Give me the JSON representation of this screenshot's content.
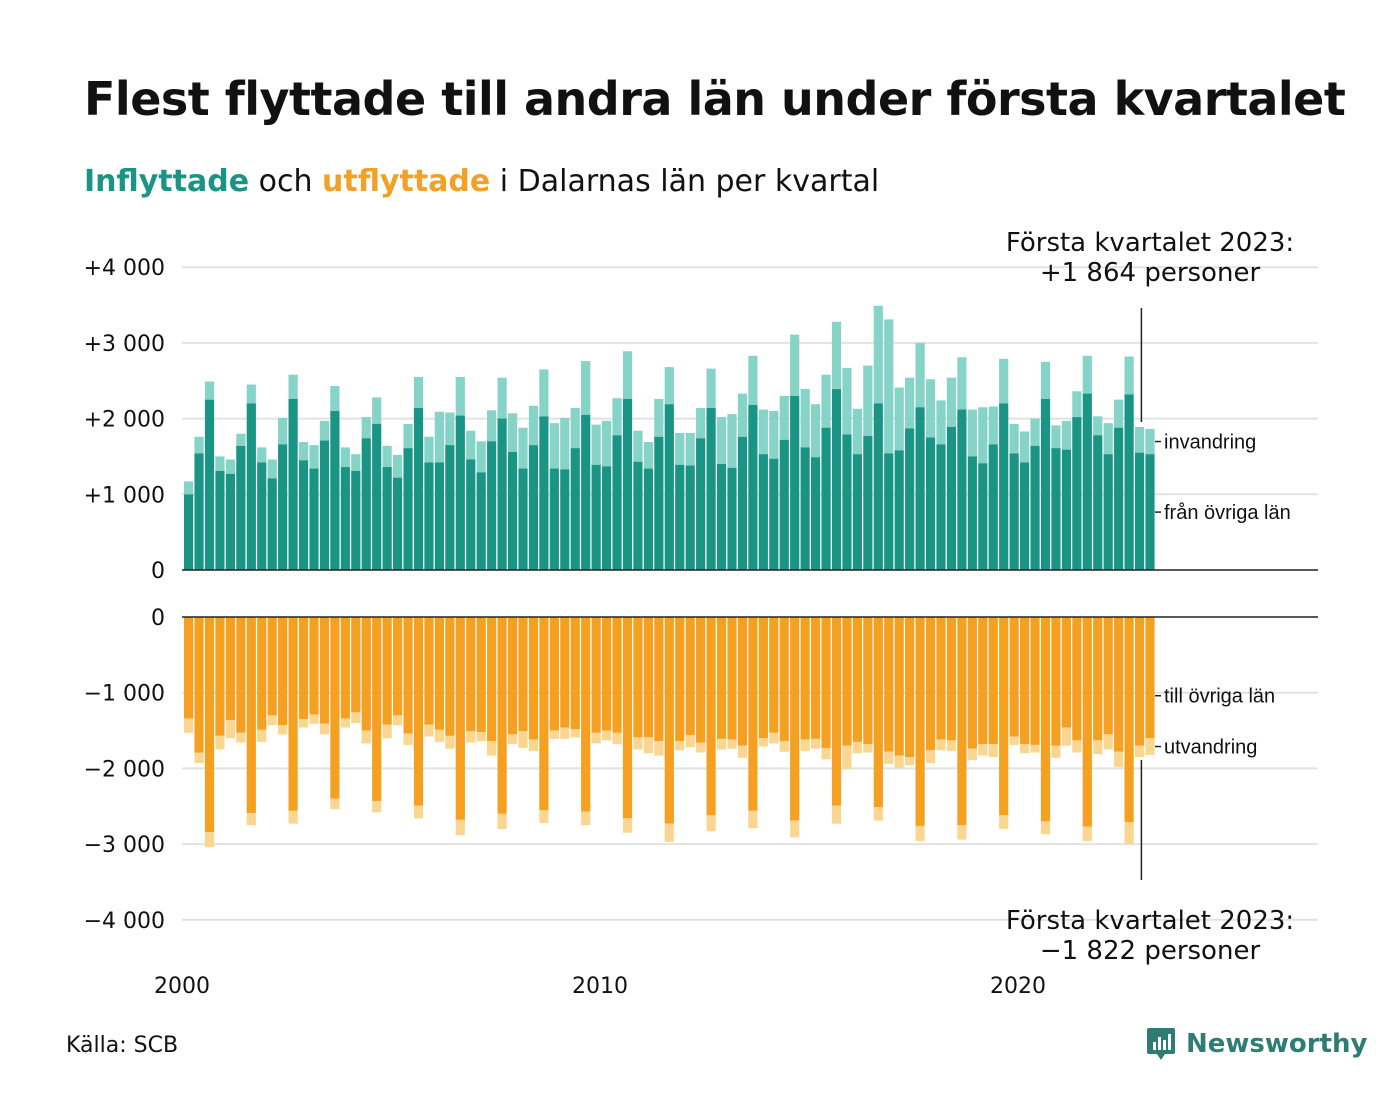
{
  "title": "Flest flyttade till andra län under första kvartalet",
  "subtitle": {
    "part1": "Inflyttade",
    "part2": " och ",
    "part3": "utflyttade",
    "part4": " i Dalarnas län per kvartal"
  },
  "source": "Källa: SCB",
  "brand": "Newsworthy",
  "colors": {
    "in_main": "#1a9484",
    "in_extra": "#86d3c8",
    "out_main": "#f5a021",
    "out_extra": "#fbd691",
    "grid": "#e2e2e2",
    "axis": "#222222"
  },
  "chart_data": {
    "type": "bar",
    "x_ticks": [
      "2000",
      "2010",
      "2020"
    ],
    "start_year": 2000,
    "top_panel": {
      "yticks": [
        "+4 000",
        "+3 000",
        "+2 000",
        "+1 000",
        "0"
      ],
      "ylim": [
        0,
        4000
      ],
      "series_labels": [
        "invandring",
        "från övriga län"
      ],
      "total": [
        1170,
        1760,
        2490,
        1500,
        1460,
        1800,
        2450,
        1620,
        1460,
        2010,
        2580,
        1690,
        1650,
        1970,
        2430,
        1620,
        1530,
        2020,
        2280,
        1640,
        1520,
        1930,
        2550,
        1760,
        2090,
        2080,
        2550,
        1840,
        1700,
        2110,
        2540,
        2070,
        1880,
        2170,
        2650,
        1940,
        2010,
        2140,
        2760,
        1920,
        1970,
        2270,
        2890,
        1840,
        1690,
        2260,
        2680,
        1810,
        1810,
        2140,
        2660,
        2020,
        2060,
        2330,
        2830,
        2120,
        2100,
        2300,
        3110,
        2390,
        2190,
        2580,
        3280,
        2670,
        2130,
        2700,
        3490,
        3310,
        2410,
        2540,
        3000,
        2520,
        2240,
        2540,
        2810,
        2120,
        2150,
        2160,
        2790,
        1930,
        1830,
        2000,
        2750,
        1910,
        1970,
        2360,
        2830,
        2030,
        1940,
        2250,
        2820,
        1890,
        1864
      ],
      "domestic": [
        1000,
        1540,
        2250,
        1310,
        1270,
        1640,
        2200,
        1420,
        1210,
        1660,
        2260,
        1450,
        1340,
        1710,
        2100,
        1360,
        1310,
        1740,
        1930,
        1360,
        1220,
        1610,
        2140,
        1420,
        1420,
        1650,
        2040,
        1460,
        1290,
        1700,
        2000,
        1560,
        1340,
        1650,
        2030,
        1340,
        1330,
        1610,
        2050,
        1390,
        1370,
        1780,
        2260,
        1430,
        1340,
        1760,
        2190,
        1390,
        1380,
        1740,
        2140,
        1400,
        1350,
        1760,
        2180,
        1530,
        1470,
        1720,
        2300,
        1620,
        1490,
        1880,
        2390,
        1790,
        1530,
        1770,
        2200,
        1540,
        1580,
        1870,
        2150,
        1750,
        1660,
        1890,
        2120,
        1500,
        1410,
        1660,
        2200,
        1540,
        1420,
        1640,
        2260,
        1610,
        1590,
        2020,
        2330,
        1780,
        1530,
        1880,
        2320,
        1550,
        1530
      ]
    },
    "bottom_panel": {
      "yticks": [
        "0",
        "−1 000",
        "−2 000",
        "−3 000",
        "−4 000"
      ],
      "ylim": [
        -4000,
        0
      ],
      "series_labels": [
        "till övriga län",
        "utvandring"
      ],
      "total": [
        -1530,
        -1930,
        -3040,
        -1750,
        -1600,
        -1660,
        -2750,
        -1650,
        -1430,
        -1550,
        -2730,
        -1460,
        -1410,
        -1550,
        -2540,
        -1460,
        -1400,
        -1670,
        -2580,
        -1600,
        -1430,
        -1690,
        -2660,
        -1580,
        -1650,
        -1740,
        -2880,
        -1660,
        -1640,
        -1830,
        -2800,
        -1680,
        -1730,
        -1770,
        -2720,
        -1610,
        -1610,
        -1590,
        -2750,
        -1670,
        -1630,
        -1680,
        -2850,
        -1750,
        -1800,
        -1830,
        -2970,
        -1760,
        -1720,
        -1790,
        -2830,
        -1750,
        -1740,
        -1860,
        -2790,
        -1710,
        -1670,
        -1780,
        -2910,
        -1770,
        -1740,
        -1880,
        -2730,
        -2010,
        -1800,
        -1790,
        -2690,
        -1940,
        -1990,
        -1960,
        -2960,
        -1930,
        -1760,
        -1770,
        -2940,
        -1890,
        -1830,
        -1850,
        -2800,
        -1690,
        -1800,
        -1790,
        -2870,
        -1860,
        -1700,
        -1790,
        -2960,
        -1810,
        -1750,
        -1980,
        -3000,
        -1850,
        -1822
      ],
      "domestic": [
        -1340,
        -1790,
        -2840,
        -1570,
        -1360,
        -1530,
        -2590,
        -1490,
        -1300,
        -1430,
        -2560,
        -1350,
        -1290,
        -1410,
        -2400,
        -1340,
        -1260,
        -1500,
        -2430,
        -1420,
        -1300,
        -1540,
        -2490,
        -1420,
        -1490,
        -1570,
        -2680,
        -1510,
        -1520,
        -1640,
        -2600,
        -1550,
        -1510,
        -1620,
        -2550,
        -1500,
        -1460,
        -1480,
        -2570,
        -1530,
        -1500,
        -1530,
        -2660,
        -1590,
        -1590,
        -1640,
        -2730,
        -1640,
        -1560,
        -1660,
        -2620,
        -1610,
        -1620,
        -1700,
        -2560,
        -1600,
        -1530,
        -1640,
        -2690,
        -1620,
        -1610,
        -1730,
        -2490,
        -1700,
        -1650,
        -1680,
        -2510,
        -1780,
        -1830,
        -1850,
        -2760,
        -1760,
        -1620,
        -1630,
        -2750,
        -1740,
        -1680,
        -1680,
        -2620,
        -1580,
        -1680,
        -1690,
        -2700,
        -1700,
        -1460,
        -1630,
        -2770,
        -1630,
        -1550,
        -1780,
        -2710,
        -1700,
        -1600
      ]
    },
    "annotations": {
      "top_line1": "Första kvartalet 2023:",
      "top_line2": "+1 864 personer",
      "bottom_line1": "Första kvartalet 2023:",
      "bottom_line2": "−1 822 personer"
    }
  }
}
